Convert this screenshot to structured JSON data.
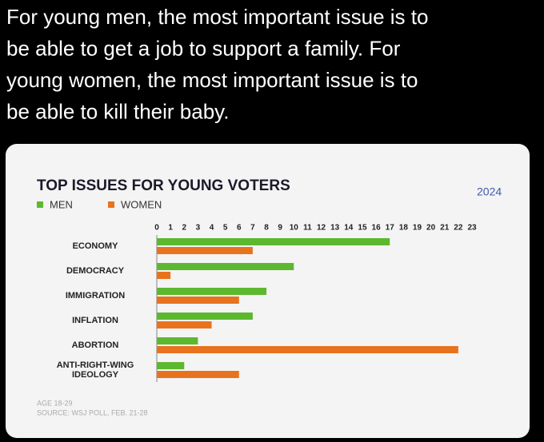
{
  "caption": [
    "For young men, the most important issue is to",
    "be able to get a job to support a family. For",
    "young women, the most important issue is to",
    "be able to kill their baby."
  ],
  "chart_data": {
    "type": "bar",
    "orientation": "horizontal",
    "title": "TOP ISSUES FOR YOUNG VOTERS",
    "badge": "2024",
    "categories": [
      "ECONOMY",
      "DEMOCRACY",
      "IMMIGRATION",
      "INFLATION",
      "ABORTION",
      "ANTI-RIGHT-WING IDEOLOGY"
    ],
    "series": [
      {
        "name": "MEN",
        "color": "#5cb82e",
        "values": [
          17,
          10,
          8,
          7,
          3,
          2
        ]
      },
      {
        "name": "WOMEN",
        "color": "#e8731e",
        "values": [
          7,
          1,
          6,
          4,
          22,
          6
        ]
      }
    ],
    "xlim": [
      0,
      23
    ],
    "xticks": [
      0,
      1,
      2,
      3,
      4,
      5,
      6,
      7,
      8,
      9,
      10,
      11,
      12,
      13,
      14,
      15,
      16,
      17,
      18,
      19,
      20,
      21,
      22,
      23
    ],
    "notes": [
      "AGE 18-29",
      "SOURCE: WSJ POLL, FEB. 21-28"
    ]
  }
}
